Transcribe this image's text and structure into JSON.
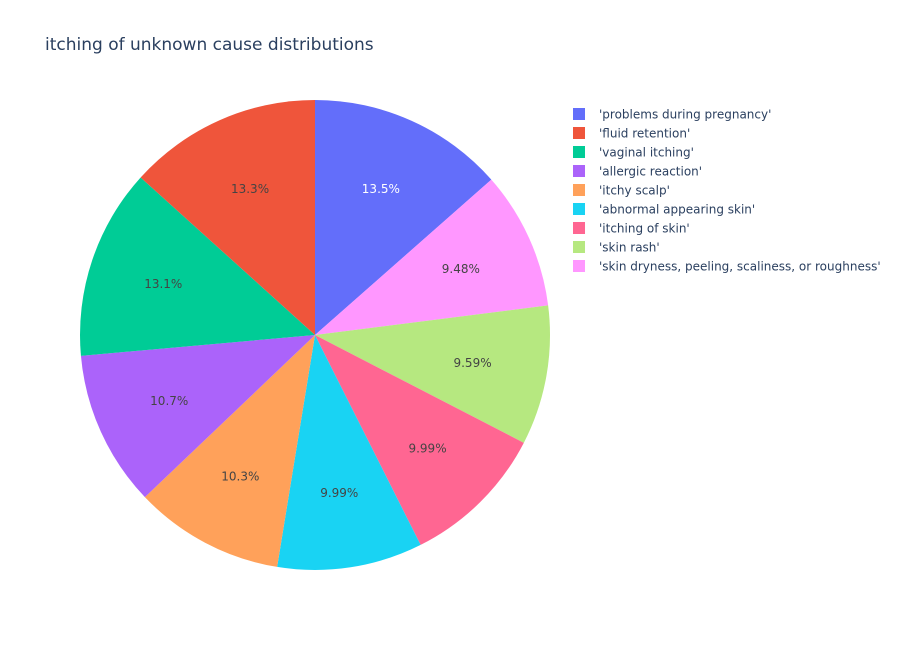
{
  "chart_data": {
    "type": "pie",
    "title": "itching of unknown cause distributions",
    "direction": "clockwise",
    "start": "12 o'clock",
    "legend_position": "right",
    "slices": [
      {
        "label": "'problems during pregnancy'",
        "value": 13.5,
        "text": "13.5%",
        "color": "#636efa",
        "text_color": "#ffffff"
      },
      {
        "label": "'skin dryness, peeling, scaliness, or roughness'",
        "value": 9.48,
        "text": "9.48%",
        "color": "#ff97ff",
        "text_color": "#444444"
      },
      {
        "label": "'skin rash'",
        "value": 9.59,
        "text": "9.59%",
        "color": "#b6e880",
        "text_color": "#444444"
      },
      {
        "label": "'itching of skin'",
        "value": 9.99,
        "text": "9.99%",
        "color": "#ff6692",
        "text_color": "#444444"
      },
      {
        "label": "'abnormal appearing skin'",
        "value": 9.99,
        "text": "9.99%",
        "color": "#19d3f3",
        "text_color": "#444444"
      },
      {
        "label": "'itchy scalp'",
        "value": 10.3,
        "text": "10.3%",
        "color": "#ffa15a",
        "text_color": "#444444"
      },
      {
        "label": "'allergic reaction'",
        "value": 10.7,
        "text": "10.7%",
        "color": "#ab63fa",
        "text_color": "#444444"
      },
      {
        "label": "'vaginal itching'",
        "value": 13.1,
        "text": "13.1%",
        "color": "#00cc96",
        "text_color": "#444444"
      },
      {
        "label": "'fluid retention'",
        "value": 13.3,
        "text": "13.3%",
        "color": "#ef553b",
        "text_color": "#444444"
      }
    ],
    "legend": [
      {
        "label": "'problems during pregnancy'",
        "color": "#636efa"
      },
      {
        "label": "'fluid retention'",
        "color": "#ef553b"
      },
      {
        "label": "'vaginal itching'",
        "color": "#00cc96"
      },
      {
        "label": "'allergic reaction'",
        "color": "#ab63fa"
      },
      {
        "label": "'itchy scalp'",
        "color": "#ffa15a"
      },
      {
        "label": "'abnormal appearing skin'",
        "color": "#19d3f3"
      },
      {
        "label": "'itching of skin'",
        "color": "#ff6692"
      },
      {
        "label": "'skin rash'",
        "color": "#b6e880"
      },
      {
        "label": "'skin dryness, peeling, scaliness, or roughness'",
        "color": "#ff97ff"
      }
    ]
  }
}
